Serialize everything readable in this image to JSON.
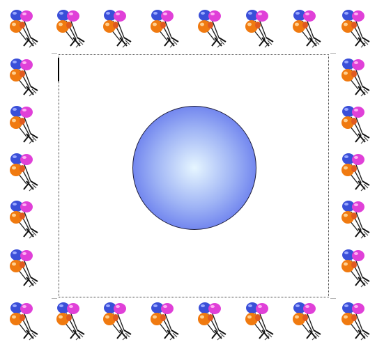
{
  "document": {
    "page_border": {
      "art": "balloons-border",
      "balloon_colors": [
        "#3a4fd8",
        "#e040d8",
        "#f07a10",
        "#e05a20"
      ],
      "tile_icon": "balloon-bunch-icon"
    },
    "text_area": {
      "content": "",
      "state": "empty, text cursor at start"
    },
    "shape": {
      "type": "sphere",
      "icon": "sphere-shape",
      "fill_center": "#e6f6ff",
      "fill_mid": "#9fb4f5",
      "fill_edge": "#4255e8",
      "outline": "#1e1e3c"
    }
  }
}
